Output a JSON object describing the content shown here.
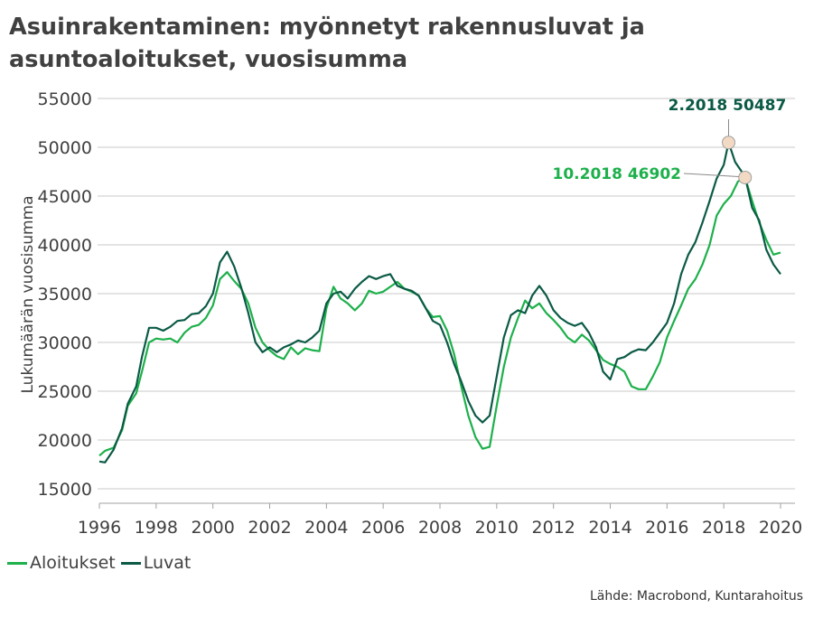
{
  "title_line1": "Asuinrakentaminen: myönnetyt rakennusluvat ja",
  "title_line2": "asuntoaloitukset, vuosisumma",
  "source": "Lähde: Macrobond, Kuntarahoitus",
  "colors": {
    "aloitukset": "#1db04b",
    "luvat": "#0b5a45",
    "grid": "#c8c8c8",
    "marker": "#f2d9c4"
  },
  "chart_data": {
    "type": "line",
    "title": "Asuinrakentaminen: myönnetyt rakennusluvat ja asuntoaloitukset, vuosisumma",
    "ylabel": "Lukumäärän vuosisumma",
    "xlabel": "",
    "xlim": [
      1996,
      2020
    ],
    "ylim": [
      15000,
      55000
    ],
    "yticks": [
      15000,
      20000,
      25000,
      30000,
      35000,
      40000,
      45000,
      50000,
      55000
    ],
    "xticks": [
      1996,
      1998,
      2000,
      2002,
      2004,
      2006,
      2008,
      2010,
      2012,
      2014,
      2016,
      2018,
      2020
    ],
    "grid": "horizontal",
    "legend": "bottom-left",
    "series": [
      {
        "name": "Aloitukset",
        "color": "#1db04b",
        "points": [
          [
            1996.0,
            18400
          ],
          [
            1996.2,
            18900
          ],
          [
            1996.5,
            19200
          ],
          [
            1996.8,
            21000
          ],
          [
            1997.0,
            23500
          ],
          [
            1997.3,
            24800
          ],
          [
            1997.5,
            27000
          ],
          [
            1997.75,
            30000
          ],
          [
            1998.0,
            30400
          ],
          [
            1998.25,
            30300
          ],
          [
            1998.5,
            30400
          ],
          [
            1998.75,
            30000
          ],
          [
            1999.0,
            31000
          ],
          [
            1999.25,
            31600
          ],
          [
            1999.5,
            31800
          ],
          [
            1999.75,
            32500
          ],
          [
            2000.0,
            33800
          ],
          [
            2000.25,
            36500
          ],
          [
            2000.5,
            37200
          ],
          [
            2000.75,
            36300
          ],
          [
            2001.0,
            35500
          ],
          [
            2001.25,
            34000
          ],
          [
            2001.5,
            31500
          ],
          [
            2001.75,
            30000
          ],
          [
            2002.0,
            29200
          ],
          [
            2002.25,
            28600
          ],
          [
            2002.5,
            28300
          ],
          [
            2002.75,
            29500
          ],
          [
            2003.0,
            28800
          ],
          [
            2003.25,
            29400
          ],
          [
            2003.5,
            29200
          ],
          [
            2003.75,
            29100
          ],
          [
            2004.0,
            33500
          ],
          [
            2004.25,
            35700
          ],
          [
            2004.5,
            34500
          ],
          [
            2004.75,
            34000
          ],
          [
            2005.0,
            33300
          ],
          [
            2005.25,
            34000
          ],
          [
            2005.5,
            35300
          ],
          [
            2005.75,
            35000
          ],
          [
            2006.0,
            35200
          ],
          [
            2006.25,
            35700
          ],
          [
            2006.5,
            36200
          ],
          [
            2006.75,
            35500
          ],
          [
            2007.0,
            35200
          ],
          [
            2007.25,
            34800
          ],
          [
            2007.5,
            33500
          ],
          [
            2007.75,
            32600
          ],
          [
            2008.0,
            32700
          ],
          [
            2008.25,
            31200
          ],
          [
            2008.5,
            28800
          ],
          [
            2008.75,
            25500
          ],
          [
            2009.0,
            22500
          ],
          [
            2009.25,
            20300
          ],
          [
            2009.5,
            19100
          ],
          [
            2009.75,
            19300
          ],
          [
            2010.0,
            23500
          ],
          [
            2010.25,
            27500
          ],
          [
            2010.5,
            30500
          ],
          [
            2010.75,
            32500
          ],
          [
            2011.0,
            34300
          ],
          [
            2011.25,
            33500
          ],
          [
            2011.5,
            34000
          ],
          [
            2011.75,
            33000
          ],
          [
            2012.0,
            32300
          ],
          [
            2012.25,
            31500
          ],
          [
            2012.5,
            30500
          ],
          [
            2012.75,
            30000
          ],
          [
            2013.0,
            30800
          ],
          [
            2013.25,
            30200
          ],
          [
            2013.5,
            29200
          ],
          [
            2013.75,
            28200
          ],
          [
            2014.0,
            27800
          ],
          [
            2014.25,
            27500
          ],
          [
            2014.5,
            27000
          ],
          [
            2014.75,
            25500
          ],
          [
            2015.0,
            25200
          ],
          [
            2015.25,
            25200
          ],
          [
            2015.5,
            26500
          ],
          [
            2015.75,
            28000
          ],
          [
            2016.0,
            30500
          ],
          [
            2016.25,
            32200
          ],
          [
            2016.5,
            33800
          ],
          [
            2016.75,
            35500
          ],
          [
            2017.0,
            36500
          ],
          [
            2017.25,
            38000
          ],
          [
            2017.5,
            40000
          ],
          [
            2017.75,
            43000
          ],
          [
            2018.0,
            44200
          ],
          [
            2018.25,
            45000
          ],
          [
            2018.5,
            46500
          ],
          [
            2018.75,
            46902
          ],
          [
            2019.0,
            44500
          ],
          [
            2019.25,
            42300
          ],
          [
            2019.5,
            40500
          ],
          [
            2019.75,
            39000
          ],
          [
            2020.0,
            39200
          ]
        ]
      },
      {
        "name": "Luvat",
        "color": "#0b5a45",
        "points": [
          [
            1996.0,
            17800
          ],
          [
            1996.2,
            17700
          ],
          [
            1996.5,
            19000
          ],
          [
            1996.8,
            21200
          ],
          [
            1997.0,
            23700
          ],
          [
            1997.3,
            25500
          ],
          [
            1997.5,
            28500
          ],
          [
            1997.75,
            31500
          ],
          [
            1998.0,
            31500
          ],
          [
            1998.25,
            31200
          ],
          [
            1998.5,
            31600
          ],
          [
            1998.75,
            32200
          ],
          [
            1999.0,
            32300
          ],
          [
            1999.25,
            32900
          ],
          [
            1999.5,
            33000
          ],
          [
            1999.75,
            33700
          ],
          [
            2000.0,
            35000
          ],
          [
            2000.25,
            38200
          ],
          [
            2000.5,
            39300
          ],
          [
            2000.75,
            37800
          ],
          [
            2001.0,
            35600
          ],
          [
            2001.25,
            33000
          ],
          [
            2001.5,
            30000
          ],
          [
            2001.75,
            29000
          ],
          [
            2002.0,
            29500
          ],
          [
            2002.25,
            29000
          ],
          [
            2002.5,
            29500
          ],
          [
            2002.75,
            29800
          ],
          [
            2003.0,
            30200
          ],
          [
            2003.25,
            30000
          ],
          [
            2003.5,
            30500
          ],
          [
            2003.75,
            31200
          ],
          [
            2004.0,
            34000
          ],
          [
            2004.25,
            35000
          ],
          [
            2004.5,
            35200
          ],
          [
            2004.75,
            34500
          ],
          [
            2005.0,
            35500
          ],
          [
            2005.25,
            36200
          ],
          [
            2005.5,
            36800
          ],
          [
            2005.75,
            36500
          ],
          [
            2006.0,
            36800
          ],
          [
            2006.25,
            37000
          ],
          [
            2006.5,
            35800
          ],
          [
            2006.75,
            35500
          ],
          [
            2007.0,
            35300
          ],
          [
            2007.25,
            34800
          ],
          [
            2007.5,
            33500
          ],
          [
            2007.75,
            32200
          ],
          [
            2008.0,
            31800
          ],
          [
            2008.25,
            30000
          ],
          [
            2008.5,
            27800
          ],
          [
            2008.75,
            26000
          ],
          [
            2009.0,
            24000
          ],
          [
            2009.25,
            22500
          ],
          [
            2009.5,
            21800
          ],
          [
            2009.75,
            22500
          ],
          [
            2010.0,
            26500
          ],
          [
            2010.25,
            30500
          ],
          [
            2010.5,
            32800
          ],
          [
            2010.75,
            33300
          ],
          [
            2011.0,
            33000
          ],
          [
            2011.25,
            34800
          ],
          [
            2011.5,
            35800
          ],
          [
            2011.75,
            34800
          ],
          [
            2012.0,
            33300
          ],
          [
            2012.25,
            32500
          ],
          [
            2012.5,
            32000
          ],
          [
            2012.75,
            31700
          ],
          [
            2013.0,
            32000
          ],
          [
            2013.25,
            31000
          ],
          [
            2013.5,
            29500
          ],
          [
            2013.75,
            27000
          ],
          [
            2014.0,
            26200
          ],
          [
            2014.25,
            28300
          ],
          [
            2014.5,
            28500
          ],
          [
            2014.75,
            29000
          ],
          [
            2015.0,
            29300
          ],
          [
            2015.25,
            29200
          ],
          [
            2015.5,
            30000
          ],
          [
            2015.75,
            31000
          ],
          [
            2016.0,
            32000
          ],
          [
            2016.25,
            34000
          ],
          [
            2016.5,
            37000
          ],
          [
            2016.75,
            39000
          ],
          [
            2017.0,
            40300
          ],
          [
            2017.25,
            42300
          ],
          [
            2017.5,
            44500
          ],
          [
            2017.75,
            46800
          ],
          [
            2018.0,
            48200
          ],
          [
            2018.17,
            50487
          ],
          [
            2018.4,
            48500
          ],
          [
            2018.75,
            47000
          ],
          [
            2019.0,
            43800
          ],
          [
            2019.25,
            42500
          ],
          [
            2019.5,
            39500
          ],
          [
            2019.75,
            38000
          ],
          [
            2020.0,
            37000
          ]
        ]
      }
    ],
    "annotations": [
      {
        "label": "2.2018 50487",
        "x": 2018.17,
        "y": 50487,
        "series": "Luvat"
      },
      {
        "label": "10.2018 46902",
        "x": 2018.75,
        "y": 46902,
        "series": "Aloitukset"
      }
    ]
  }
}
